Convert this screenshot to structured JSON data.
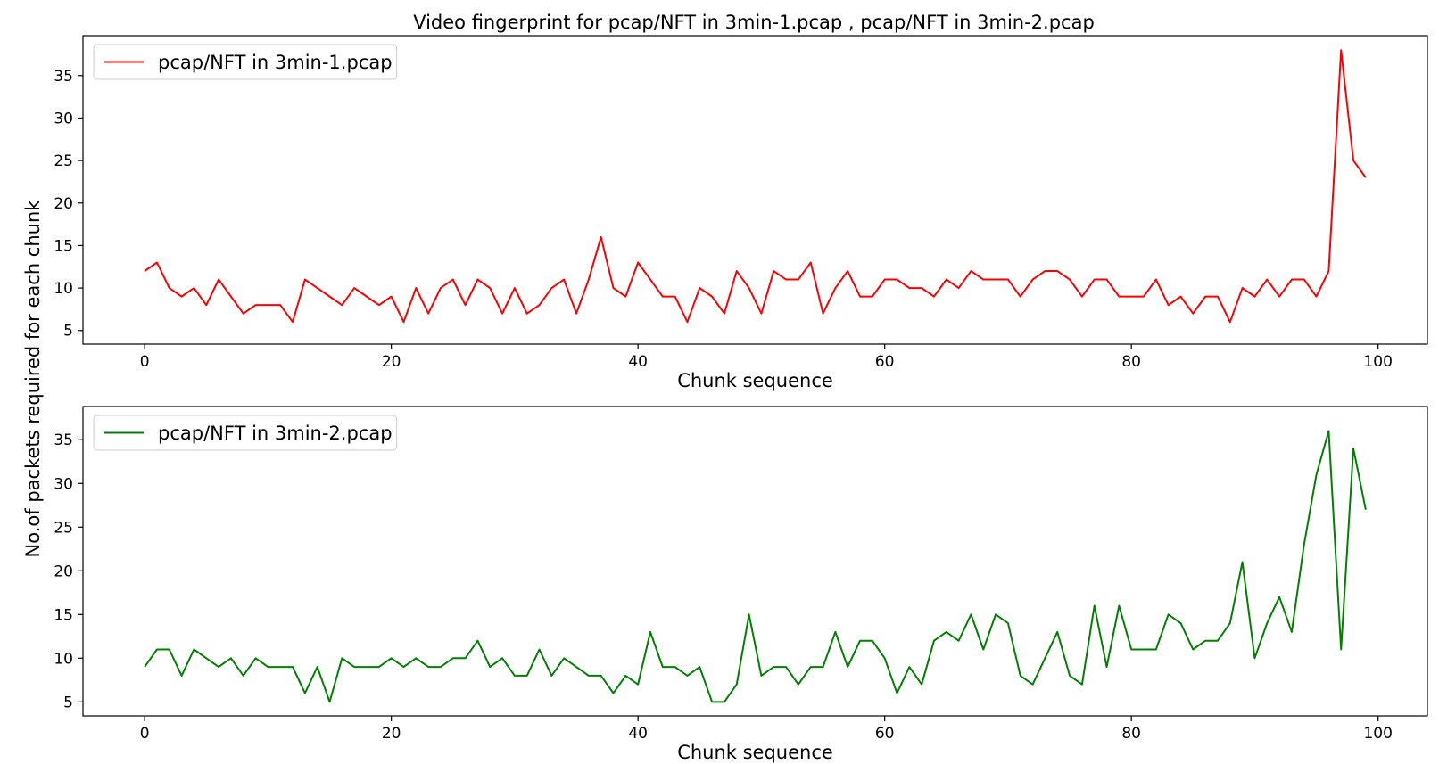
{
  "figure": {
    "title": "Video fingerprint for pcap/NFT in 3min-1.pcap , pcap/NFT in 3min-2.pcap",
    "ylabel": "No.of packets required for each chunk"
  },
  "chart_data": [
    {
      "type": "line",
      "xlabel": "Chunk sequence",
      "xlim": [
        -5,
        104
      ],
      "ylim": [
        3.4,
        39.7
      ],
      "xticks": [
        0,
        20,
        40,
        60,
        80,
        100
      ],
      "yticks": [
        5,
        10,
        15,
        20,
        25,
        30,
        35
      ],
      "legend": "top-left",
      "grid": false,
      "series": [
        {
          "name": "pcap/NFT in 3min-1.pcap",
          "color": "#ff0000",
          "values": [
            12,
            13,
            10,
            9,
            10,
            8,
            11,
            9,
            7,
            8,
            8,
            8,
            6,
            11,
            10,
            9,
            8,
            10,
            9,
            8,
            9,
            6,
            10,
            7,
            10,
            11,
            8,
            11,
            10,
            7,
            10,
            7,
            8,
            10,
            11,
            7,
            11,
            16,
            10,
            9,
            13,
            11,
            9,
            9,
            6,
            10,
            9,
            7,
            12,
            10,
            7,
            12,
            11,
            11,
            13,
            7,
            10,
            12,
            9,
            9,
            11,
            11,
            10,
            10,
            9,
            11,
            10,
            12,
            11,
            11,
            11,
            9,
            11,
            12,
            12,
            11,
            9,
            11,
            11,
            9,
            9,
            9,
            11,
            8,
            9,
            7,
            9,
            9,
            6,
            10,
            9,
            11,
            9,
            11,
            11,
            9,
            12,
            38,
            25,
            23
          ]
        }
      ]
    },
    {
      "type": "line",
      "xlabel": "Chunk sequence",
      "xlim": [
        -5,
        104
      ],
      "ylim": [
        3.4,
        38.8
      ],
      "xticks": [
        0,
        20,
        40,
        60,
        80,
        100
      ],
      "yticks": [
        5,
        10,
        15,
        20,
        25,
        30,
        35
      ],
      "legend": "top-left",
      "grid": false,
      "series": [
        {
          "name": "pcap/NFT in 3min-2.pcap",
          "color": "#008000",
          "values": [
            9,
            11,
            11,
            8,
            11,
            10,
            9,
            10,
            8,
            10,
            9,
            9,
            9,
            6,
            9,
            5,
            10,
            9,
            9,
            9,
            10,
            9,
            10,
            9,
            9,
            10,
            10,
            12,
            9,
            10,
            8,
            8,
            11,
            8,
            10,
            9,
            8,
            8,
            6,
            8,
            7,
            13,
            9,
            9,
            8,
            9,
            5,
            5,
            7,
            15,
            8,
            9,
            9,
            7,
            9,
            9,
            13,
            9,
            12,
            12,
            10,
            6,
            9,
            7,
            12,
            13,
            12,
            15,
            11,
            15,
            14,
            8,
            7,
            10,
            13,
            8,
            7,
            16,
            9,
            16,
            11,
            11,
            11,
            15,
            14,
            11,
            12,
            12,
            14,
            21,
            10,
            14,
            17,
            13,
            23,
            31,
            36,
            11,
            34,
            27
          ]
        }
      ]
    }
  ]
}
